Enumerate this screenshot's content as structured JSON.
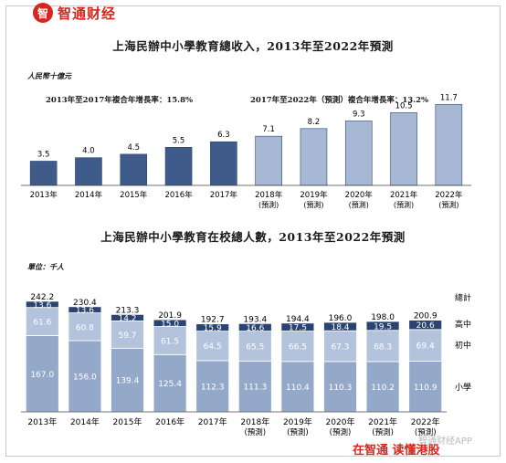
{
  "brand": {
    "logo_glyph": "智",
    "name": "智通财经"
  },
  "footer": {
    "slogan": "在智通 读懂港股",
    "watermark": "智通财经APP"
  },
  "colors": {
    "actual": "#3e5b8a",
    "forecast": "#a7b8d4",
    "brand": "#d7261e",
    "primary": "#94a9c9",
    "junior": "#b3c3dc",
    "senior": "#2b4370"
  },
  "chart_data": [
    {
      "type": "bar",
      "title": "上海民辦中小學教育總收入，2013年至2022年預測",
      "unit_label": "人民幣十億元",
      "cagr_actual": "2013年至2017年複合年增長率：15.8%",
      "cagr_forecast": "2017年至2022年（預測）複合年增長率：13.2%",
      "categories": [
        {
          "year": "2013年",
          "note": ""
        },
        {
          "year": "2014年",
          "note": ""
        },
        {
          "year": "2015年",
          "note": ""
        },
        {
          "year": "2016年",
          "note": ""
        },
        {
          "year": "2017年",
          "note": ""
        },
        {
          "year": "2018年",
          "note": "(預測)"
        },
        {
          "year": "2019年",
          "note": "(預測)"
        },
        {
          "year": "2020年",
          "note": "(預測)"
        },
        {
          "year": "2021年",
          "note": "(預測)"
        },
        {
          "year": "2022年",
          "note": "(預測)"
        }
      ],
      "values": [
        3.5,
        4.0,
        4.5,
        5.5,
        6.3,
        7.1,
        8.2,
        9.3,
        10.5,
        11.7
      ],
      "value_labels": [
        "3.5",
        "4.0",
        "4.5",
        "5.5",
        "6.3",
        "7.1",
        "8.2",
        "9.3",
        "10.5",
        "11.7"
      ],
      "forecast_from_index": 5,
      "ylim": [
        0,
        12
      ]
    },
    {
      "type": "bar",
      "stacked": true,
      "title": "上海民辦中小學教育在校總人數，2013年至2022年預測",
      "unit_label": "單位：千人",
      "categories": [
        {
          "year": "2013年",
          "note": ""
        },
        {
          "year": "2014年",
          "note": ""
        },
        {
          "year": "2015年",
          "note": ""
        },
        {
          "year": "2016年",
          "note": ""
        },
        {
          "year": "2017年",
          "note": ""
        },
        {
          "year": "2018年",
          "note": "(預測)"
        },
        {
          "year": "2019年",
          "note": "(預測)"
        },
        {
          "year": "2020年",
          "note": "(預測)"
        },
        {
          "year": "2021年",
          "note": "(預測)"
        },
        {
          "year": "2022年",
          "note": "(預測)"
        }
      ],
      "series": [
        {
          "name": "小學",
          "values": [
            167.0,
            156.0,
            139.4,
            125.4,
            112.3,
            111.3,
            110.4,
            110.3,
            110.2,
            110.9
          ],
          "labels": [
            "167.0",
            "156.0",
            "139.4",
            "125.4",
            "112.3",
            "111.3",
            "110.4",
            "110.3",
            "110.2",
            "110.9"
          ]
        },
        {
          "name": "初中",
          "values": [
            61.6,
            60.8,
            59.7,
            61.5,
            64.5,
            65.5,
            66.5,
            67.3,
            68.3,
            69.4
          ],
          "labels": [
            "61.6",
            "60.8",
            "59.7",
            "61.5",
            "64.5",
            "65.5",
            "66.5",
            "67.3",
            "68.3",
            "69.4"
          ]
        },
        {
          "name": "高中",
          "values": [
            13.6,
            13.6,
            14.2,
            15.0,
            15.9,
            16.6,
            17.5,
            18.4,
            19.5,
            20.6
          ],
          "labels": [
            "13.6",
            "13.6",
            "14.2",
            "15.0",
            "15.9",
            "16.6",
            "17.5",
            "18.4",
            "19.5",
            "20.6"
          ]
        }
      ],
      "totals": [
        242.2,
        230.4,
        213.3,
        201.9,
        192.7,
        193.4,
        194.4,
        196.0,
        198.0,
        200.9
      ],
      "total_labels": [
        "242.2",
        "230.4",
        "213.3",
        "201.9",
        "192.7",
        "193.4",
        "194.4",
        "196.0",
        "198.0",
        "200.9"
      ],
      "total_legend": "總計",
      "ylim": [
        0,
        250
      ]
    }
  ]
}
